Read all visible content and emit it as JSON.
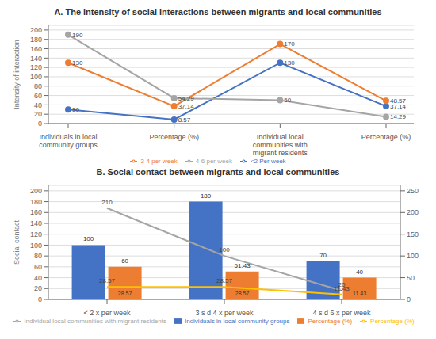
{
  "chart_data": [
    {
      "type": "line",
      "title": "A. The intensity of social interactions between migrants and local communities",
      "y_label": "Intensity of interaction",
      "categories": [
        "Individuals in local community groups",
        "Percentage (%)",
        "Individual local communities with\nmigrant residents",
        "Percentage (%)"
      ],
      "series": [
        {
          "name": "<2 Per week",
          "color": "#4472C4",
          "marker": "circle",
          "values": [
            30,
            8.57,
            130,
            37.14
          ]
        },
        {
          "name": "3-4 per week",
          "color": "#ED7D31",
          "marker": "circle",
          "values": [
            130,
            37.14,
            170,
            48.57
          ]
        },
        {
          "name": "4-6 per week",
          "color": "#A5A5A5",
          "marker": "circle",
          "values": [
            190,
            54.29,
            50,
            14.29
          ]
        }
      ],
      "ylim": [
        0,
        210
      ],
      "yticks": [
        0,
        20,
        40,
        60,
        80,
        100,
        120,
        140,
        160,
        180,
        200
      ],
      "grid": true,
      "data_labels": true,
      "legend": "bottom"
    },
    {
      "type": "bar",
      "title": "B. Social contact between migrants and local communities",
      "y_label": "Social contact",
      "categories": [
        "< 2 x per week",
        "3 s d 4 x per week",
        "4 s d 6 x per week"
      ],
      "series": [
        {
          "name": "Individuals in local community groups",
          "type": "bar",
          "color": "#4472C4",
          "values": [
            100,
            180,
            70
          ]
        },
        {
          "name": "Percentage (%)",
          "type": "bar",
          "color": "#ED7D31",
          "values": [
            60,
            51.43,
            40
          ],
          "bottom_labels": [
            "28.57",
            "28.57",
            "11.43"
          ]
        },
        {
          "name": "Individual local communities with migrant residents",
          "type": "line",
          "color": "#A5A5A5",
          "axis": "y2",
          "values": [
            210,
            100,
            20
          ]
        },
        {
          "name": "Percentage (%)",
          "type": "line",
          "color": "#FFC000",
          "axis": "y2",
          "values": [
            28.57,
            28.57,
            11.43
          ]
        }
      ],
      "ylim": [
        0,
        210
      ],
      "yticks": [
        0,
        20,
        40,
        60,
        80,
        100,
        120,
        140,
        160,
        180,
        200
      ],
      "y2lim": [
        0,
        262.5
      ],
      "y2ticks": [
        0,
        50,
        100,
        150,
        200,
        250
      ],
      "grid": true,
      "data_labels": true,
      "legend": "bottom"
    }
  ]
}
